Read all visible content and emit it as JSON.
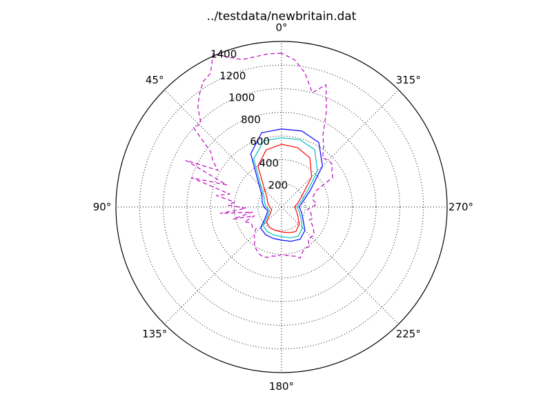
{
  "chart_data": {
    "type": "polar",
    "title": "../testdata/newbritain.dat",
    "theta_zero_location": "top",
    "theta_direction": "counterclockwise",
    "angle_ticks": [
      {
        "deg": 0,
        "label": "0°"
      },
      {
        "deg": 45,
        "label": "45°"
      },
      {
        "deg": 90,
        "label": "90°"
      },
      {
        "deg": 135,
        "label": "135°"
      },
      {
        "deg": 180,
        "label": "180°"
      },
      {
        "deg": 225,
        "label": "225°"
      },
      {
        "deg": 270,
        "label": "270°"
      },
      {
        "deg": 315,
        "label": "315°"
      }
    ],
    "radial_ticks": [
      {
        "value": 200,
        "label": "200"
      },
      {
        "value": 400,
        "label": "400"
      },
      {
        "value": 600,
        "label": "600"
      },
      {
        "value": 800,
        "label": "800"
      },
      {
        "value": 1000,
        "label": "1000"
      },
      {
        "value": 1200,
        "label": "1200"
      },
      {
        "value": 1400,
        "label": "1400"
      }
    ],
    "rlim": [
      0,
      1400
    ],
    "grid": true,
    "series": [
      {
        "color": "#0000ff",
        "line": "solid",
        "theta": [
          0,
          15,
          30,
          45,
          60,
          75,
          90,
          105,
          120,
          135,
          150,
          165,
          180,
          195,
          210,
          225,
          240,
          255,
          270,
          285,
          300,
          315,
          330,
          345,
          360
        ],
        "r": [
          660,
          650,
          520,
          270,
          190,
          170,
          150,
          120,
          150,
          250,
          270,
          275,
          280,
          300,
          315,
          280,
          210,
          175,
          150,
          190,
          280,
          490,
          630,
          665,
          660
        ]
      },
      {
        "color": "#00bfbf",
        "line": "solid",
        "theta": [
          0,
          15,
          30,
          45,
          60,
          75,
          90,
          105,
          120,
          135,
          150,
          165,
          180,
          195,
          210,
          225,
          240,
          255,
          270,
          285,
          300,
          315,
          330,
          345,
          360
        ],
        "r": [
          585,
          580,
          470,
          245,
          170,
          150,
          130,
          105,
          130,
          220,
          240,
          245,
          250,
          270,
          285,
          250,
          190,
          155,
          130,
          170,
          245,
          430,
          560,
          590,
          585
        ]
      },
      {
        "color": "#ff0000",
        "line": "solid",
        "theta": [
          0,
          15,
          30,
          45,
          60,
          75,
          90,
          105,
          120,
          135,
          150,
          165,
          180,
          195,
          210,
          225,
          240,
          255,
          270,
          285,
          300,
          315,
          330,
          345,
          360
        ],
        "r": [
          530,
          500,
          400,
          200,
          140,
          120,
          100,
          85,
          110,
          180,
          200,
          205,
          210,
          225,
          240,
          210,
          160,
          130,
          110,
          145,
          205,
          360,
          480,
          520,
          530
        ]
      },
      {
        "color": "#bf00bf",
        "line": "dashed",
        "theta": [
          0,
          5,
          10,
          15,
          20,
          24,
          28,
          32,
          36,
          40,
          44,
          48,
          52,
          56,
          60,
          64,
          68,
          72,
          76,
          80,
          84,
          88,
          92,
          96,
          100,
          104,
          108,
          112,
          116,
          120,
          125,
          130,
          135,
          140,
          145,
          150,
          155,
          160,
          165,
          170,
          175,
          180,
          185,
          190,
          195,
          200,
          205,
          210,
          215,
          220,
          225,
          230,
          235,
          240,
          245,
          250,
          255,
          260,
          265,
          270,
          275,
          280,
          285,
          290,
          295,
          300,
          305,
          310,
          315,
          320,
          325,
          330,
          335,
          340,
          345,
          350,
          355,
          360
        ],
        "r": [
          1300,
          1300,
          1290,
          1290,
          1350,
          1420,
          1280,
          1250,
          1180,
          1100,
          980,
          1000,
          760,
          700,
          620,
          900,
          500,
          800,
          450,
          560,
          400,
          450,
          300,
          520,
          250,
          420,
          240,
          340,
          300,
          290,
          300,
          280,
          330,
          350,
          400,
          420,
          440,
          450,
          440,
          420,
          420,
          400,
          410,
          420,
          430,
          460,
          420,
          400,
          410,
          350,
          360,
          360,
          330,
          300,
          260,
          280,
          260,
          250,
          220,
          260,
          300,
          280,
          270,
          290,
          320,
          500,
          520,
          560,
          560,
          540,
          620,
          700,
          900,
          1100,
          1000,
          1150,
          1250,
          1300
        ]
      }
    ]
  }
}
